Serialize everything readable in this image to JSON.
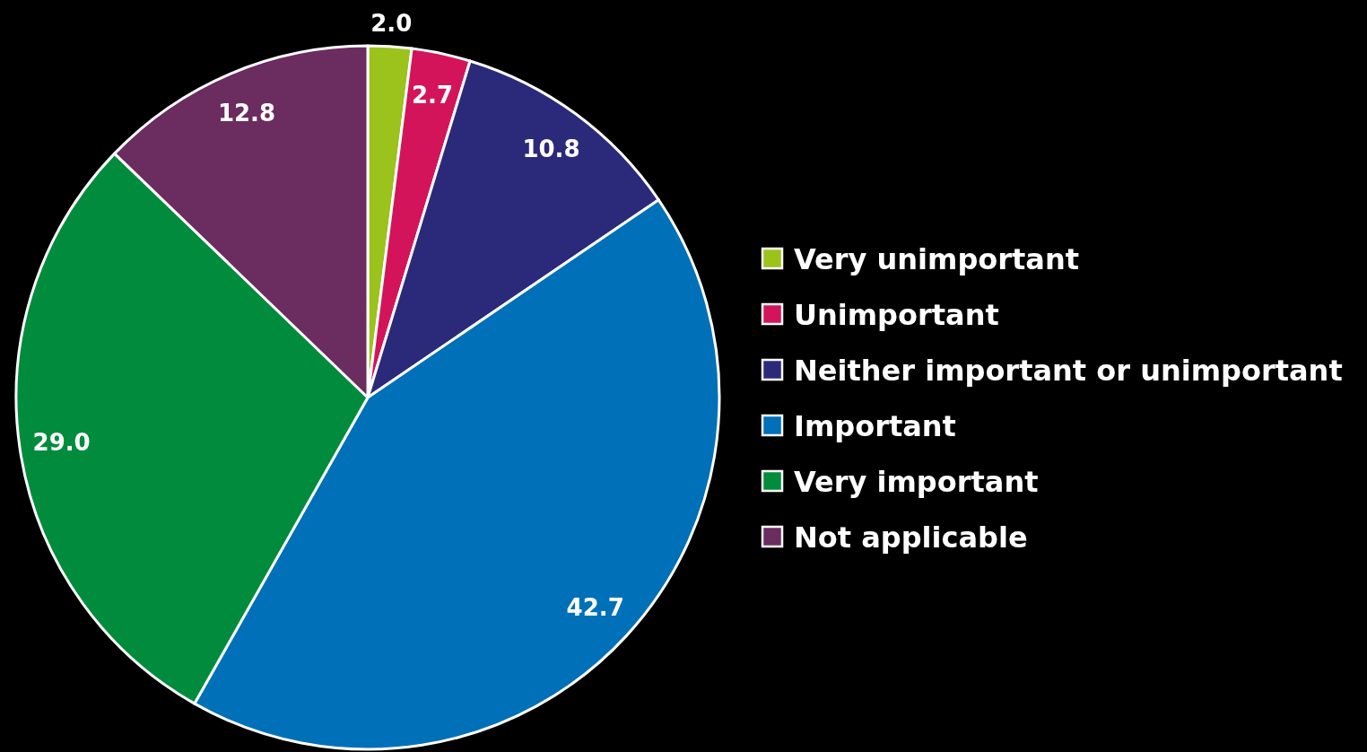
{
  "chart_data": {
    "type": "pie",
    "categories": [
      "Very unimportant",
      "Unimportant",
      "Neither important or unimportant",
      "Important",
      "Very important",
      "Not applicable"
    ],
    "values": [
      2.0,
      2.7,
      10.8,
      42.7,
      29.0,
      12.8
    ],
    "value_labels": [
      "2.0",
      "2.7",
      "10.8",
      "42.7",
      "29.0",
      "12.8"
    ],
    "colors": [
      "#9bc31c",
      "#d4145a",
      "#2b2a7a",
      "#0070b8",
      "#008c3c",
      "#6b2c5f"
    ],
    "legend": "right"
  }
}
